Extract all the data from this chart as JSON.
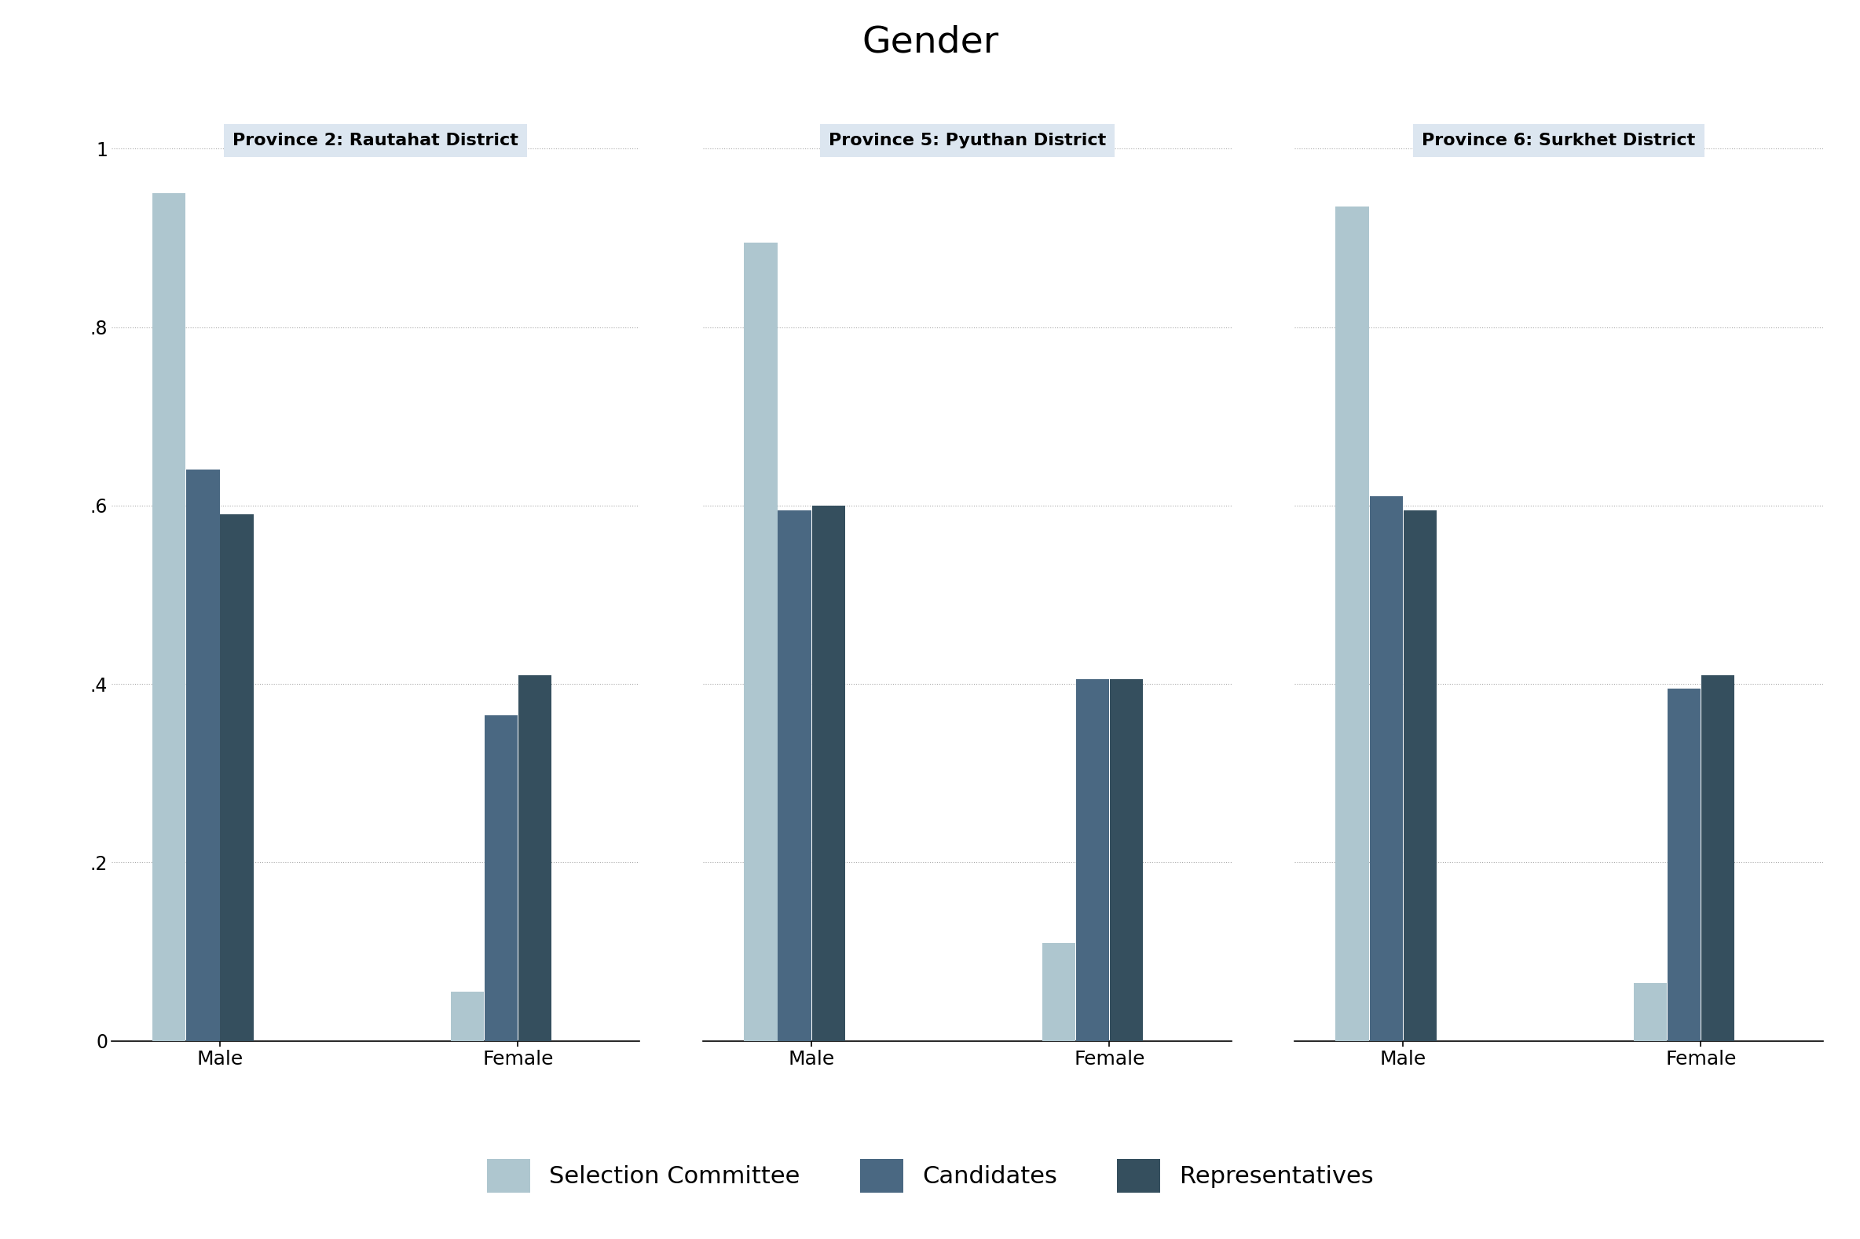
{
  "title": "Gender",
  "title_fontsize": 34,
  "panels": [
    {
      "label": "Province 2: Rautahat District",
      "male": [
        0.95,
        0.64,
        0.59
      ],
      "female": [
        0.055,
        0.365,
        0.41
      ]
    },
    {
      "label": "Province 5: Pyuthan District",
      "male": [
        0.895,
        0.595,
        0.6
      ],
      "female": [
        0.11,
        0.405,
        0.405
      ]
    },
    {
      "label": "Province 6: Surkhet District",
      "male": [
        0.935,
        0.61,
        0.595
      ],
      "female": [
        0.065,
        0.395,
        0.41
      ]
    }
  ],
  "series_names": [
    "Selection Committee",
    "Candidates",
    "Representatives"
  ],
  "colors": [
    "#aec6cf",
    "#4a6882",
    "#354f5e"
  ],
  "bar_width": 0.25,
  "ylim": [
    0,
    1.0
  ],
  "yticks": [
    0,
    0.2,
    0.4,
    0.6,
    0.8,
    1.0
  ],
  "yticklabels": [
    "0",
    ".2",
    ".4",
    ".6",
    ".8",
    "1"
  ],
  "tick_fontsize": 17,
  "panel_label_fontsize": 16,
  "legend_fontsize": 22,
  "background_color": "#ffffff",
  "panel_bg_color": "#dce6f0",
  "grid_color": "#aaaaaa",
  "grid_style": ":",
  "grid_alpha": 1.0
}
